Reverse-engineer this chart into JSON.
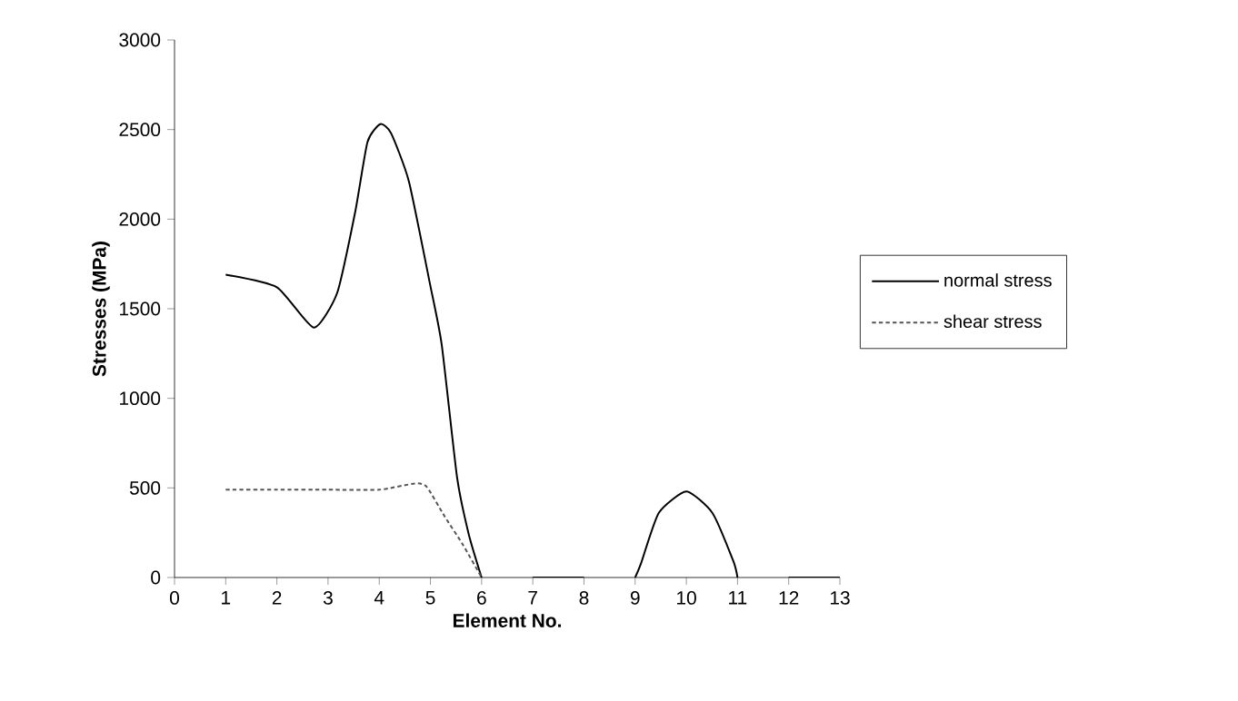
{
  "chart_data": {
    "type": "line",
    "xlabel": "Element No.",
    "ylabel": "Stresses (MPa)",
    "xlim": [
      0,
      13
    ],
    "xticks": [
      0,
      1,
      2,
      3,
      4,
      5,
      6,
      7,
      8,
      9,
      10,
      11,
      12,
      13
    ],
    "ylim": [
      0,
      3000
    ],
    "yticks": [
      0,
      500,
      1000,
      1500,
      2000,
      2500,
      3000
    ],
    "legend": "right",
    "grid": false,
    "series": [
      {
        "name": "normal stress",
        "color": "#000000",
        "line_style": "solid",
        "x": [
          1,
          2,
          2.72,
          3.18,
          3.53,
          3.77,
          4.02,
          4.23,
          4.58,
          4.99,
          5.22,
          5.52,
          5.75,
          6,
          6.5,
          7,
          8,
          8.5,
          9,
          9.11,
          9.46,
          10,
          10.51,
          10.92,
          11,
          11.5,
          12,
          13
        ],
        "values": [
          1690,
          1620,
          1395,
          1590,
          2040,
          2430,
          2530,
          2480,
          2210,
          1640,
          1300,
          560,
          240,
          0,
          null,
          0,
          0,
          null,
          0,
          75,
          360,
          480,
          360,
          90,
          0,
          null,
          0,
          0
        ]
      },
      {
        "name": "shear stress",
        "color": "#555555",
        "line_style": "dashed",
        "x": [
          1,
          2,
          3,
          4,
          4.7,
          4.93,
          5.28,
          5.63,
          6
        ],
        "values": [
          490,
          490,
          490,
          490,
          525,
          505,
          340,
          185,
          0
        ]
      }
    ]
  }
}
